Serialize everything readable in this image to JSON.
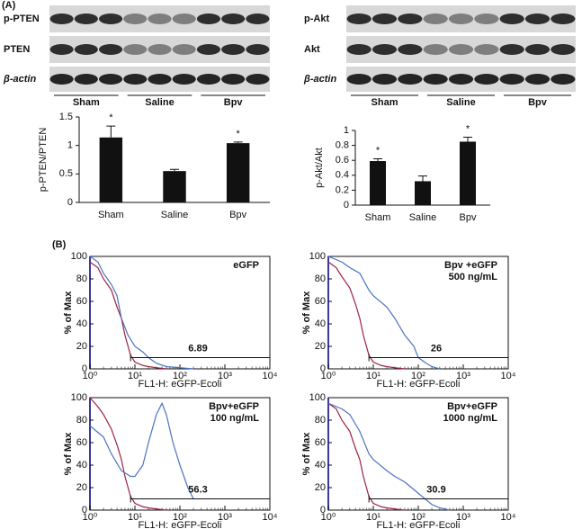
{
  "panel_labels": [
    "(A)",
    "(B)"
  ],
  "blots": [
    {
      "rows": [
        "p-PTEN",
        "PTEN",
        "β-actin"
      ],
      "groups": [
        "Sham",
        "Saline",
        "Bpv"
      ]
    },
    {
      "rows": [
        "p-Akt",
        "Akt",
        "β-actin"
      ],
      "groups": [
        "Sham",
        "Saline",
        "Bpv"
      ]
    }
  ],
  "chart_data": [
    {
      "type": "bar",
      "ylabel": "p-PTEN/PTEN",
      "categories": [
        "Sham",
        "Saline",
        "Bpv"
      ],
      "values": [
        1.14,
        0.55,
        1.04
      ],
      "errors": [
        0.2,
        0.03,
        0.02
      ],
      "color": "#111111",
      "ylim": [
        0,
        1.5
      ],
      "yticks": [
        0,
        0.5,
        1,
        1.5
      ],
      "annotations": [
        {
          "text": "*",
          "x": "Sham"
        },
        {
          "text": "*",
          "x": "Bpv"
        }
      ]
    },
    {
      "type": "bar",
      "ylabel": "p-Akt/Akt",
      "categories": [
        "Sham",
        "Saline",
        "Bpv"
      ],
      "values": [
        0.59,
        0.32,
        0.85
      ],
      "errors": [
        0.03,
        0.07,
        0.06
      ],
      "color": "#111111",
      "ylim": [
        0,
        1
      ],
      "yticks": [
        0,
        0.2,
        0.4,
        0.6,
        0.8,
        1
      ],
      "annotations": [
        {
          "text": "*",
          "x": "Sham"
        },
        {
          "text": "*",
          "x": "Bpv"
        }
      ]
    },
    {
      "type": "line",
      "title": [
        "eGFP"
      ],
      "ylabel": "% of Max",
      "xlabel": "FL1-H: eGFP-Ecoli",
      "xscale": "log",
      "xlim": [
        1,
        10000
      ],
      "xticks": [
        {
          "value": 1,
          "label": "10⁰"
        },
        {
          "value": 10,
          "label": "10¹"
        },
        {
          "value": 100,
          "label": "10²"
        },
        {
          "value": 1000,
          "label": "10³"
        },
        {
          "value": 10000,
          "label": "10⁴"
        }
      ],
      "ylim": [
        0,
        100
      ],
      "yticks": [
        0,
        20,
        40,
        60,
        80,
        100
      ],
      "gate_range": [
        8,
        10000
      ],
      "gate_level": 10,
      "gated_percent": 6.89,
      "series": [
        {
          "color": "#9b2340",
          "x": [
            1,
            1.5,
            2,
            3,
            4,
            5,
            6,
            8,
            10,
            15,
            20,
            30,
            50
          ],
          "values": [
            95,
            90,
            80,
            70,
            55,
            45,
            30,
            12,
            6,
            3,
            2,
            1,
            0
          ]
        },
        {
          "color": "#4a72c0",
          "x": [
            1,
            1.5,
            2,
            3,
            4,
            5,
            7,
            10,
            15,
            20,
            30,
            50,
            100,
            200
          ],
          "values": [
            100,
            95,
            85,
            75,
            65,
            45,
            30,
            20,
            15,
            10,
            5,
            2,
            1,
            0
          ]
        }
      ]
    },
    {
      "type": "line",
      "title": [
        "Bpv +eGFP",
        "500 ng/mL"
      ],
      "ylabel": "% of Max",
      "xlabel": "FL1-H: eGFP-Ecoli",
      "xscale": "log",
      "xlim": [
        1,
        10000
      ],
      "xticks": [
        {
          "value": 1,
          "label": "10⁰"
        },
        {
          "value": 10,
          "label": "10¹"
        },
        {
          "value": 100,
          "label": "10²"
        },
        {
          "value": 1000,
          "label": "10³"
        },
        {
          "value": 10000,
          "label": "10⁴"
        }
      ],
      "ylim": [
        0,
        100
      ],
      "yticks": [
        0,
        20,
        40,
        60,
        80,
        100
      ],
      "gate_range": [
        8,
        10000
      ],
      "gate_level": 10,
      "gated_percent": 26,
      "series": [
        {
          "color": "#9b2340",
          "x": [
            1,
            1.5,
            2,
            3,
            4,
            5,
            6,
            8,
            10,
            15,
            20,
            30,
            50
          ],
          "values": [
            95,
            90,
            82,
            72,
            58,
            45,
            30,
            12,
            6,
            3,
            2,
            1,
            0
          ]
        },
        {
          "color": "#4a72c0",
          "x": [
            1,
            2,
            3,
            5,
            8,
            10,
            20,
            30,
            50,
            80,
            100,
            150,
            200,
            300
          ],
          "values": [
            100,
            95,
            90,
            85,
            70,
            65,
            55,
            45,
            30,
            20,
            10,
            5,
            2,
            0
          ]
        }
      ]
    },
    {
      "type": "line",
      "title": [
        "Bpv+eGFP",
        "100 ng/mL"
      ],
      "ylabel": "% of Max",
      "xlabel": "FL1-H: eGFP-Ecoli",
      "xscale": "log",
      "xlim": [
        1,
        10000
      ],
      "xticks": [
        {
          "value": 1,
          "label": "10⁰"
        },
        {
          "value": 10,
          "label": "10¹"
        },
        {
          "value": 100,
          "label": "10²"
        },
        {
          "value": 1000,
          "label": "10³"
        },
        {
          "value": 10000,
          "label": "10⁴"
        }
      ],
      "ylim": [
        0,
        100
      ],
      "yticks": [
        0,
        20,
        40,
        60,
        80,
        100
      ],
      "gate_range": [
        8,
        10000
      ],
      "gate_level": 10,
      "gated_percent": 56.3,
      "series": [
        {
          "color": "#9b2340",
          "x": [
            1,
            1.5,
            2,
            3,
            4,
            5,
            6,
            8,
            10,
            15,
            20,
            30,
            50
          ],
          "values": [
            100,
            92,
            85,
            72,
            58,
            45,
            30,
            12,
            6,
            3,
            2,
            1,
            0
          ]
        },
        {
          "color": "#4a72c0",
          "x": [
            1,
            2,
            3,
            5,
            8,
            10,
            15,
            20,
            30,
            40,
            50,
            70,
            100,
            150,
            200
          ],
          "values": [
            75,
            65,
            50,
            35,
            30,
            30,
            40,
            60,
            85,
            95,
            85,
            60,
            40,
            20,
            10
          ]
        }
      ]
    },
    {
      "type": "line",
      "title": [
        "Bpv+eGFP",
        "1000 ng/mL"
      ],
      "ylabel": "% of Max",
      "xlabel": "FL1-H: eGFP-Ecoli",
      "xscale": "log",
      "xlim": [
        1,
        10000
      ],
      "xticks": [
        {
          "value": 1,
          "label": "10⁰"
        },
        {
          "value": 10,
          "label": "10¹"
        },
        {
          "value": 100,
          "label": "10²"
        },
        {
          "value": 1000,
          "label": "10³"
        },
        {
          "value": 10000,
          "label": "10⁴"
        }
      ],
      "ylim": [
        0,
        100
      ],
      "yticks": [
        0,
        20,
        40,
        60,
        80,
        100
      ],
      "gate_range": [
        8,
        10000
      ],
      "gate_level": 10,
      "gated_percent": 30.9,
      "series": [
        {
          "color": "#9b2340",
          "x": [
            1,
            1.5,
            2,
            3,
            4,
            5,
            6,
            8,
            10,
            15,
            20,
            30,
            50
          ],
          "values": [
            95,
            90,
            80,
            70,
            55,
            45,
            30,
            12,
            6,
            3,
            2,
            1,
            0
          ]
        },
        {
          "color": "#4a72c0",
          "x": [
            1,
            2,
            3,
            5,
            8,
            10,
            20,
            30,
            50,
            100,
            200,
            300,
            500
          ],
          "values": [
            95,
            90,
            85,
            70,
            50,
            45,
            35,
            30,
            25,
            15,
            5,
            2,
            0
          ]
        }
      ]
    }
  ]
}
